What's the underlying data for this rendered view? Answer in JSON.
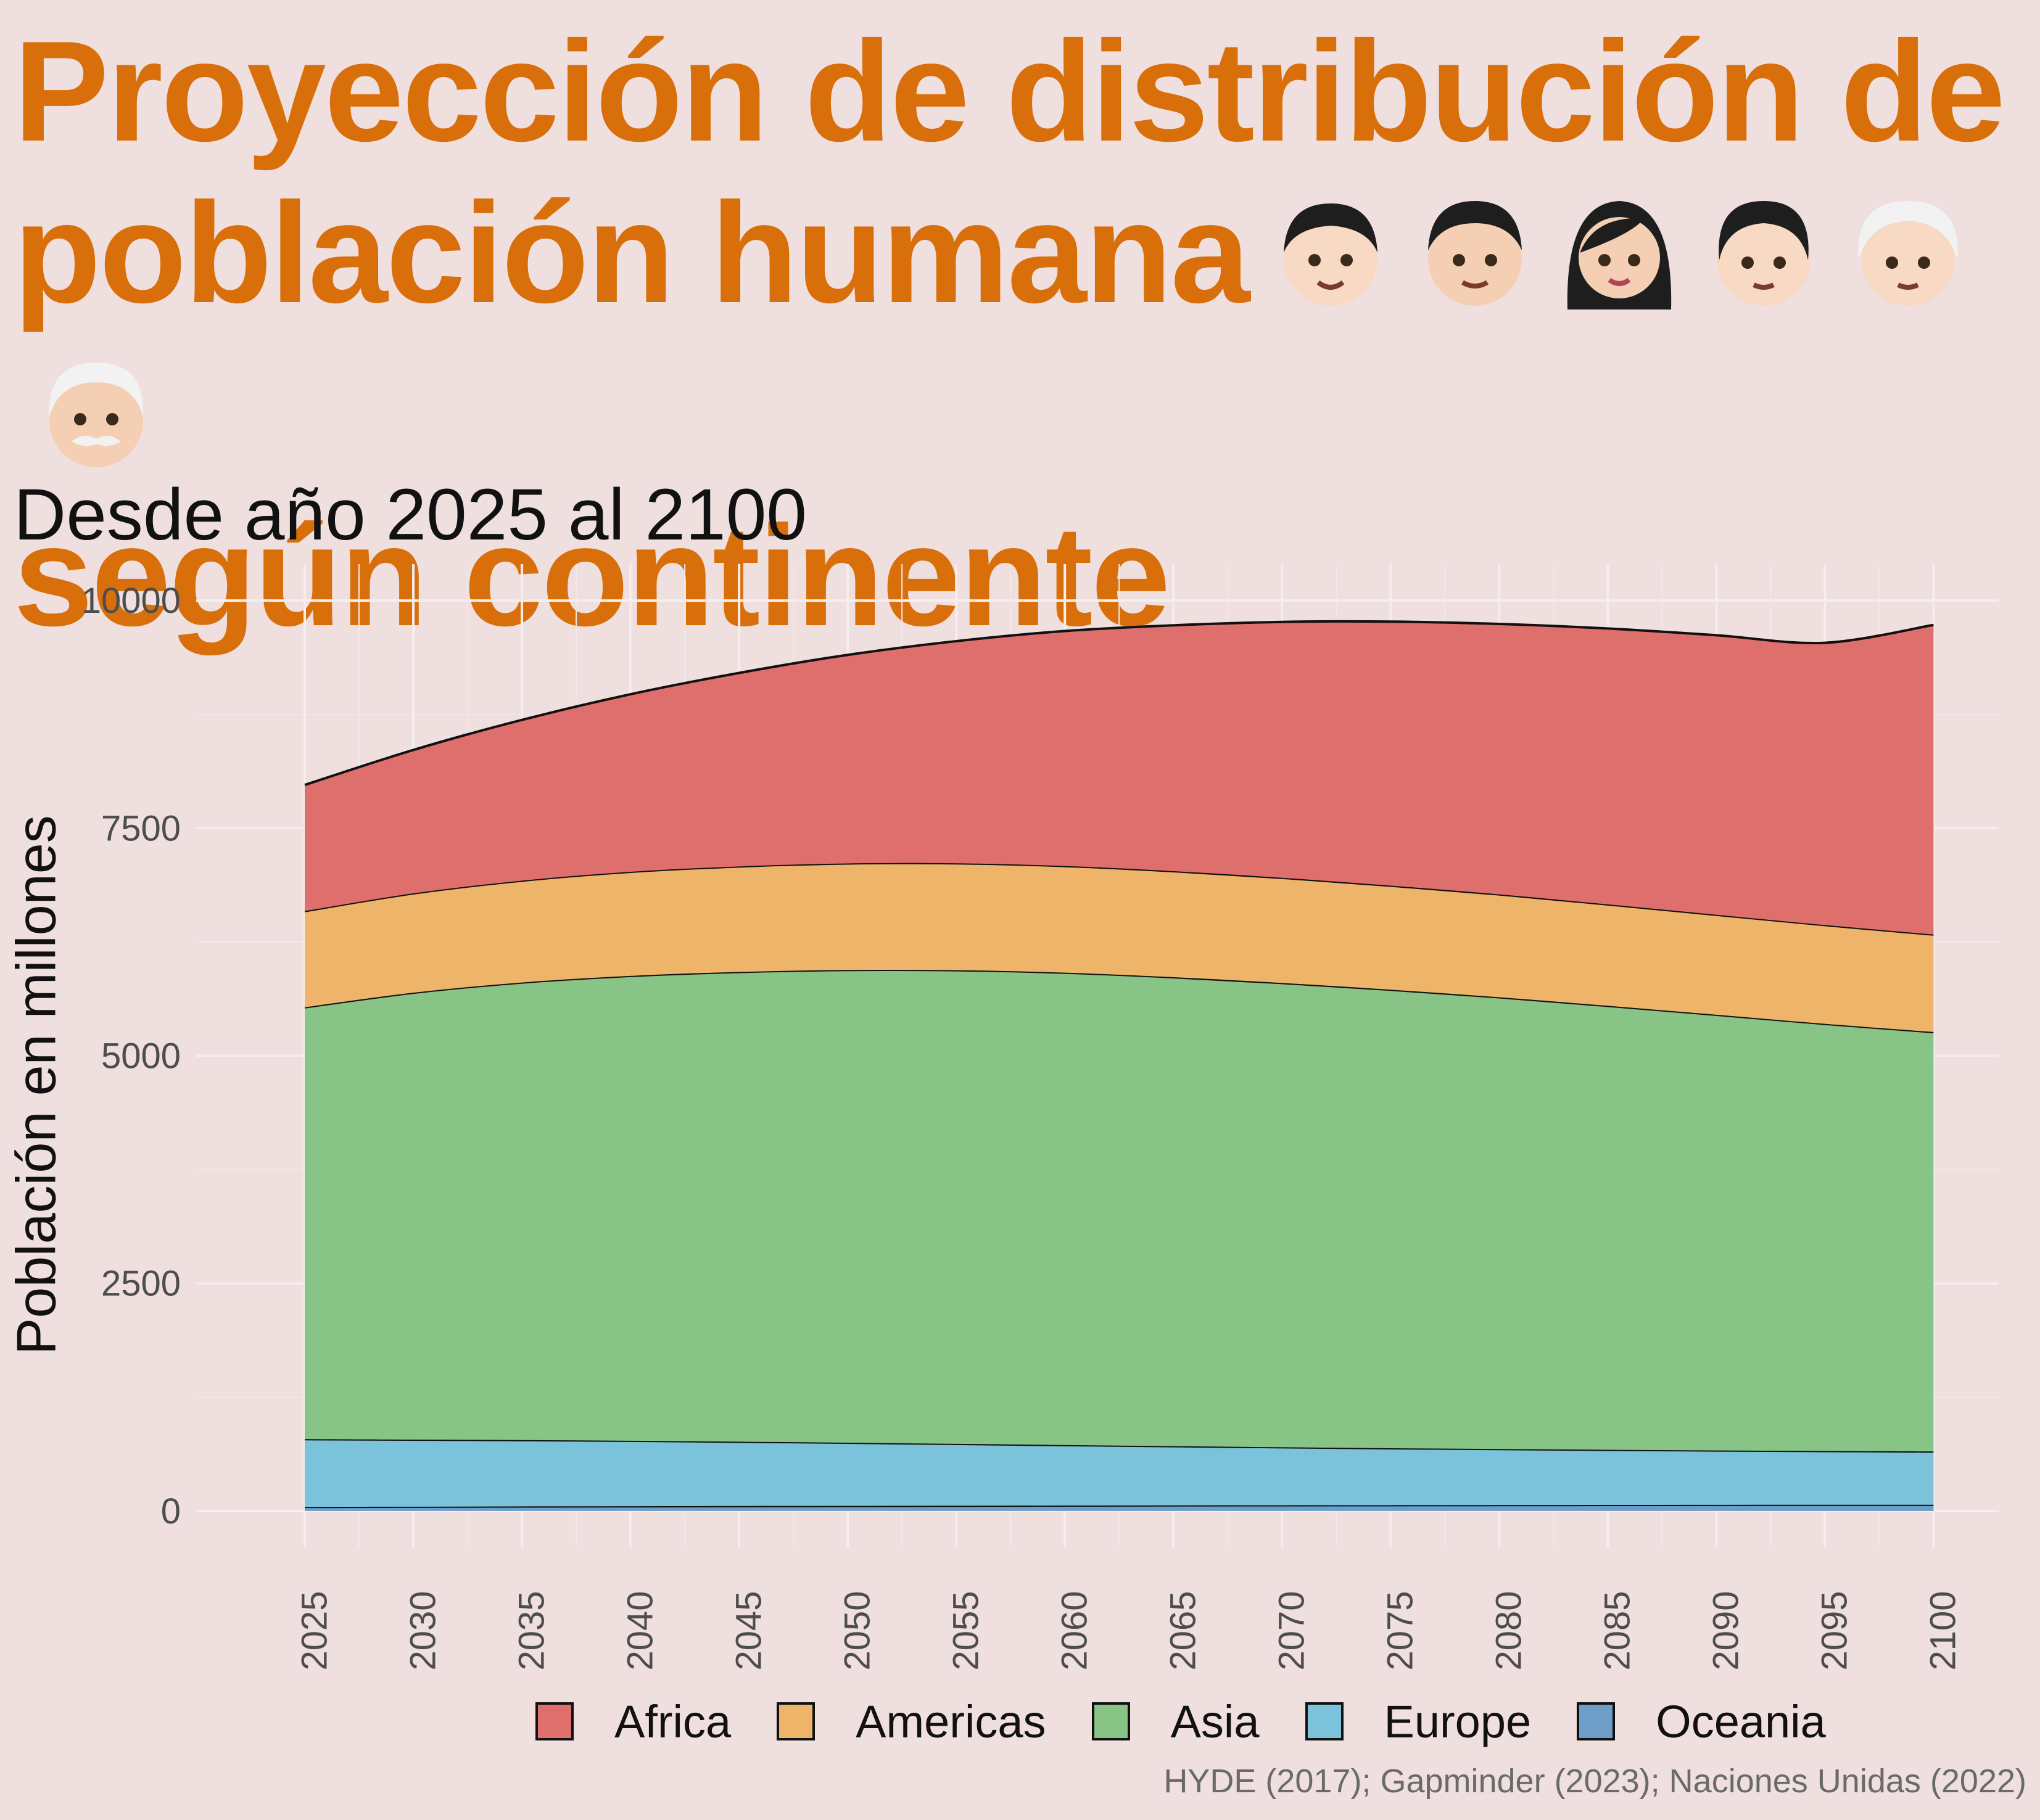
{
  "title_line1": "Proyección de distribución de",
  "title_line2": "población humana",
  "title_line3": "según continente",
  "title_icons": [
    "child-face-icon",
    "boy-face-icon",
    "woman-face-icon",
    "person-face-icon",
    "older-person-face-icon",
    "old-man-face-icon"
  ],
  "subtitle": "Desde año 2025 al 2100",
  "caption": "HYDE (2017); Gapminder (2023); Naciones Unidas (2022)",
  "chart_data": {
    "type": "area",
    "stacked": true,
    "ylabel": "Población en millones",
    "xlabel": "",
    "xlim": [
      2020,
      2103
    ],
    "ylim": [
      -400,
      10400
    ],
    "y_ticks": [
      0,
      2500,
      5000,
      7500,
      10000
    ],
    "y_tick_labels": [
      "0",
      "2500",
      "5000",
      "7500",
      "10000"
    ],
    "x_ticks": [
      2025,
      2030,
      2035,
      2040,
      2045,
      2050,
      2055,
      2060,
      2065,
      2070,
      2075,
      2080,
      2085,
      2090,
      2095,
      2100
    ],
    "x_tick_labels": [
      "2025",
      "2030",
      "2035",
      "2040",
      "2045",
      "2050",
      "2055",
      "2060",
      "2065",
      "2070",
      "2075",
      "2080",
      "2085",
      "2090",
      "2095",
      "2100"
    ],
    "grid": true,
    "legend_position": "bottom",
    "x": [
      2025,
      2030,
      2035,
      2040,
      2045,
      2050,
      2055,
      2060,
      2065,
      2070,
      2075,
      2080,
      2085,
      2090,
      2095,
      2100
    ],
    "series": [
      {
        "name": "Oceania",
        "color": "#6E9DC9",
        "values": [
          46,
          48,
          51,
          53,
          55,
          57,
          59,
          61,
          63,
          64,
          65,
          66,
          67,
          68,
          69,
          69
        ]
      },
      {
        "name": "Europe",
        "color": "#7AC3DB",
        "values": [
          744,
          737,
          729,
          719,
          707,
          694,
          679,
          664,
          650,
          637,
          625,
          616,
          606,
          598,
          591,
          585
        ]
      },
      {
        "name": "Asia",
        "color": "#88C486",
        "values": [
          4743,
          4908,
          5025,
          5106,
          5159,
          5192,
          5202,
          5188,
          5150,
          5099,
          5036,
          4961,
          4876,
          4785,
          4691,
          4607
        ]
      },
      {
        "name": "Americas",
        "color": "#EEB46A",
        "values": [
          1057,
          1091,
          1119,
          1143,
          1159,
          1170,
          1174,
          1172,
          1165,
          1155,
          1143,
          1130,
          1114,
          1098,
          1085,
          1071
        ]
      },
      {
        "name": "Africa",
        "color": "#DE6F6C",
        "values": [
          1385,
          1575,
          1765,
          1950,
          2125,
          2290,
          2440,
          2580,
          2700,
          2810,
          2900,
          2970,
          3030,
          3070,
          3100,
          3400
        ]
      }
    ],
    "legend_order": [
      "Africa",
      "Americas",
      "Asia",
      "Europe",
      "Oceania"
    ]
  }
}
